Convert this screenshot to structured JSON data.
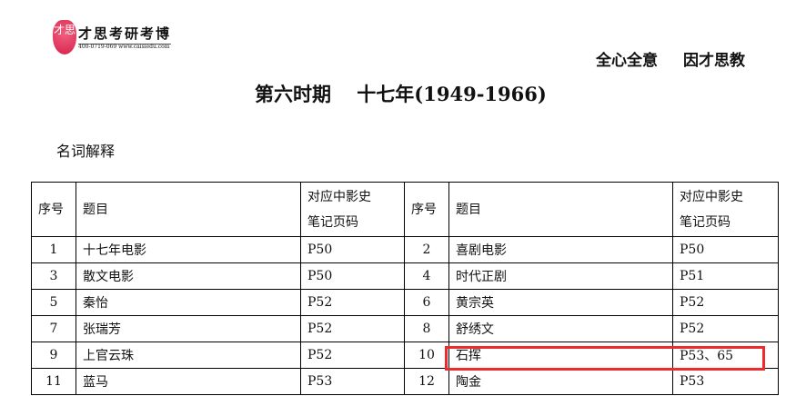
{
  "header": {
    "logo_mark": "才思",
    "logo_name": "才思考研考博",
    "logo_contact": "400-0719-069   www.caisiedu.com",
    "motto": [
      "全心全意",
      "因才思教"
    ]
  },
  "title": "第六时期　 十七年(1949-1966)",
  "section": "名词解释",
  "table": {
    "headers": [
      "序号",
      "题目",
      "对应中影史笔记页码",
      "序号",
      "题目",
      "对应中影史笔记页码"
    ],
    "header_page_lines": [
      "对应中影史",
      "笔记页码"
    ],
    "rows": [
      [
        "1",
        "十七年电影",
        "P50",
        "2",
        "喜剧电影",
        "P50"
      ],
      [
        "3",
        "散文电影",
        "P50",
        "4",
        "时代正剧",
        "P51"
      ],
      [
        "5",
        "秦怡",
        "P52",
        "6",
        "黄宗英",
        "P52"
      ],
      [
        "7",
        "张瑞芳",
        "P52",
        "8",
        "舒绣文",
        "P52"
      ],
      [
        "9",
        "上官云珠",
        "P52",
        "10",
        "石挥",
        "P53、65"
      ],
      [
        "11",
        "蓝马",
        "P53",
        "12",
        "陶金",
        "P53"
      ]
    ]
  },
  "highlight_color": "#ee2a2a"
}
